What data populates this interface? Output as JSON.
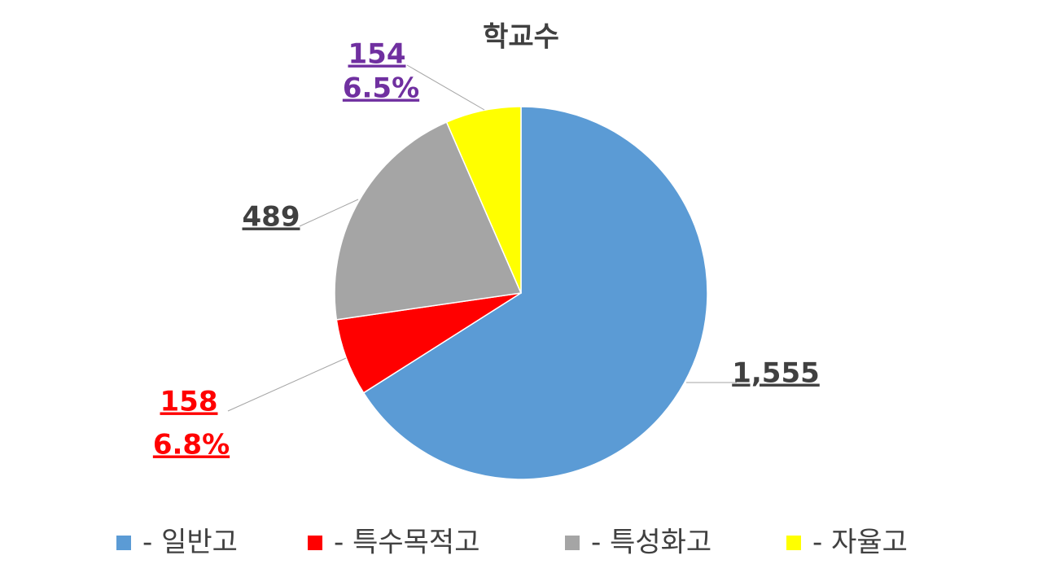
{
  "chart_data": {
    "type": "pie",
    "title": "학교수",
    "categories": [
      "- 일반고",
      "- 특수목적고",
      "- 특성화고",
      "- 자율고"
    ],
    "values": [
      1555,
      158,
      489,
      154
    ],
    "value_labels": [
      "1,555",
      "158",
      "489",
      "154"
    ],
    "percent_labels": [
      null,
      "6.8%",
      null,
      "6.5%"
    ],
    "colors": [
      "#5b9bd5",
      "#ff0000",
      "#a5a5a5",
      "#ffff00"
    ],
    "label_colors": [
      "#404040",
      "#ff0000",
      "#404040",
      "#7030a0"
    ],
    "legend": "bottom"
  }
}
